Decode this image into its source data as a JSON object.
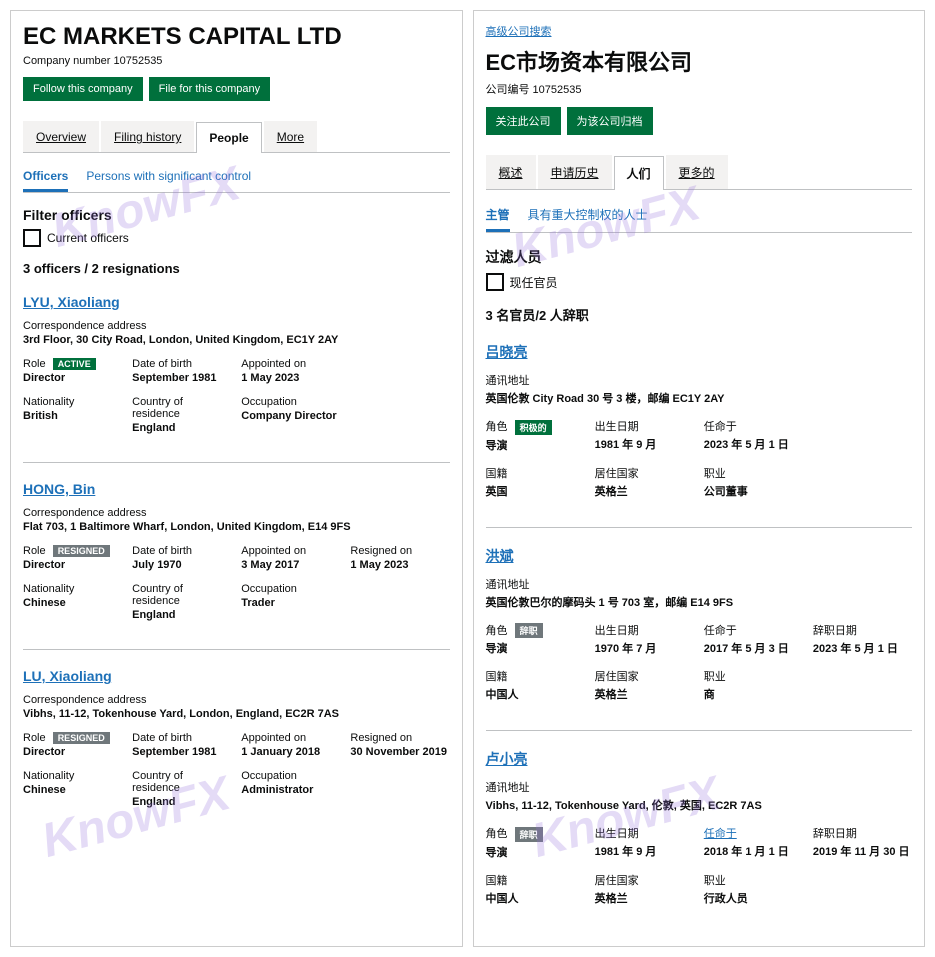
{
  "watermark_text": "KnowFX",
  "watermark_color": "rgba(147,112,219,0.25)",
  "left": {
    "title": "EC MARKETS CAPITAL LTD",
    "company_number_label": "Company number 10752535",
    "btn_follow": "Follow this company",
    "btn_file": "File for this company",
    "tabs": {
      "overview": "Overview",
      "filing": "Filing history",
      "people": "People",
      "more": "More"
    },
    "subtabs": {
      "officers": "Officers",
      "psc": "Persons with significant control"
    },
    "filter_heading": "Filter officers",
    "filter_checkbox": "Current officers",
    "summary": "3 officers / 2 resignations",
    "labels": {
      "corr": "Correspondence address",
      "role": "Role",
      "dob": "Date of birth",
      "appointed": "Appointed on",
      "resigned": "Resigned on",
      "nationality": "Nationality",
      "residence": "Country of residence",
      "occupation": "Occupation"
    },
    "badge_active": "ACTIVE",
    "badge_resigned": "RESIGNED",
    "officers": [
      {
        "name": "LYU, Xiaoliang",
        "address": "3rd Floor, 30 City Road, London, United Kingdom, EC1Y 2AY",
        "role": "Director",
        "status": "active",
        "dob": "September 1981",
        "appointed": "1 May 2023",
        "resigned": "",
        "nationality": "British",
        "residence": "England",
        "occupation": "Company Director"
      },
      {
        "name": "HONG, Bin",
        "address": "Flat 703, 1 Baltimore Wharf, London, United Kingdom, E14 9FS",
        "role": "Director",
        "status": "resigned",
        "dob": "July 1970",
        "appointed": "3 May 2017",
        "resigned": "1 May 2023",
        "nationality": "Chinese",
        "residence": "England",
        "occupation": "Trader"
      },
      {
        "name": "LU, Xiaoliang",
        "address": "Vibhs, 11-12, Tokenhouse Yard, London, England, EC2R 7AS",
        "role": "Director",
        "status": "resigned",
        "dob": "September 1981",
        "appointed": "1 January 2018",
        "resigned": "30 November 2019",
        "nationality": "Chinese",
        "residence": "England",
        "occupation": "Administrator"
      }
    ]
  },
  "right": {
    "adv_search": "高级公司搜索",
    "title": "EC市场资本有限公司",
    "company_number_label": "公司编号 10752535",
    "btn_follow": "关注此公司",
    "btn_file": "为该公司归档",
    "tabs": {
      "overview": "概述",
      "filing": "申请历史",
      "people": "人们",
      "more": "更多的"
    },
    "subtabs": {
      "officers": "主管",
      "psc": "具有重大控制权的人士"
    },
    "filter_heading": "过滤人员",
    "filter_checkbox": "现任官员",
    "summary": "3 名官员/2 人辞职",
    "labels": {
      "corr": "通讯地址",
      "role": "角色",
      "dob": "出生日期",
      "appointed": "任命于",
      "resigned": "辞职日期",
      "nationality": "国籍",
      "residence": "居住国家",
      "occupation": "职业"
    },
    "badge_active": "积极的",
    "badge_resigned": "辞职",
    "officers": [
      {
        "name": "吕晓亮",
        "address": "英国伦敦 City Road 30 号 3 楼，邮编 EC1Y 2AY",
        "role": "导演",
        "status": "active",
        "dob": "1981 年 9 月",
        "appointed": "2023 年 5 月 1 日",
        "resigned": "",
        "nationality": "英国",
        "residence": "英格兰",
        "occupation": "公司董事"
      },
      {
        "name": "洪斌",
        "address": "英国伦敦巴尔的摩码头 1 号 703 室，邮编 E14 9FS",
        "role": "导演",
        "status": "resigned",
        "dob": "1970 年 7 月",
        "appointed": "2017 年 5 月 3 日",
        "resigned": "2023 年 5 月 1 日",
        "nationality": "中国人",
        "residence": "英格兰",
        "occupation": "商"
      },
      {
        "name": "卢小亮",
        "address": "Vibhs, 11-12, Tokenhouse Yard, 伦敦, 英国, EC2R 7AS",
        "role": "导演",
        "status": "resigned",
        "dob": "1981 年 9 月",
        "appointed": "2018 年 1 月 1 日",
        "resigned": "2019 年 11 月 30 日",
        "nationality": "中国人",
        "residence": "英格兰",
        "occupation": "行政人员",
        "appointed_link": true
      }
    ]
  }
}
